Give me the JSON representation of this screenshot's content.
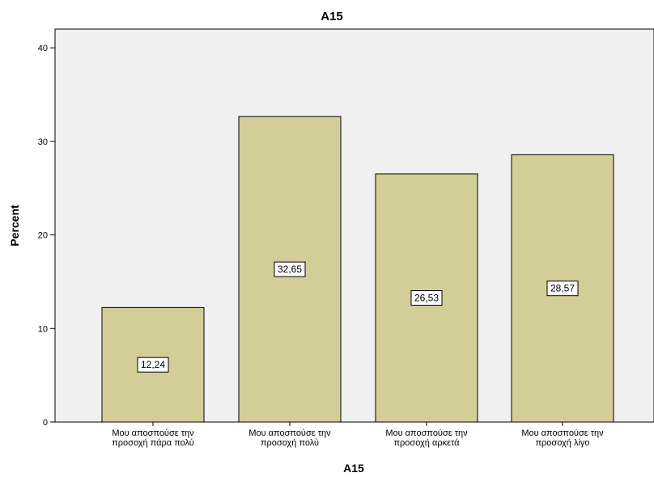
{
  "chart_data": {
    "type": "bar",
    "title": "A15",
    "xlabel": "A15",
    "ylabel": "Percent",
    "categories": [
      [
        "Μου αποσπούσε την",
        "προσοχή πάρα πολύ"
      ],
      [
        "Μου αποσπούσε την",
        "προσοχή πολύ"
      ],
      [
        "Μου αποσπούσε την",
        "προσοχή αρκετά"
      ],
      [
        "Μου αποσπούσε την",
        "προσοχή λίγο"
      ]
    ],
    "values": [
      12.24,
      32.65,
      26.53,
      28.57
    ],
    "data_labels": [
      "12,24",
      "32,65",
      "26,53",
      "28,57"
    ],
    "ylim": [
      0,
      42
    ],
    "yticks": [
      0,
      10,
      20,
      30,
      40
    ],
    "grid": false,
    "colors": {
      "plot_background": "#f0f0f0",
      "bar_fill": "#d3ce97",
      "bar_stroke": "#000000"
    }
  }
}
